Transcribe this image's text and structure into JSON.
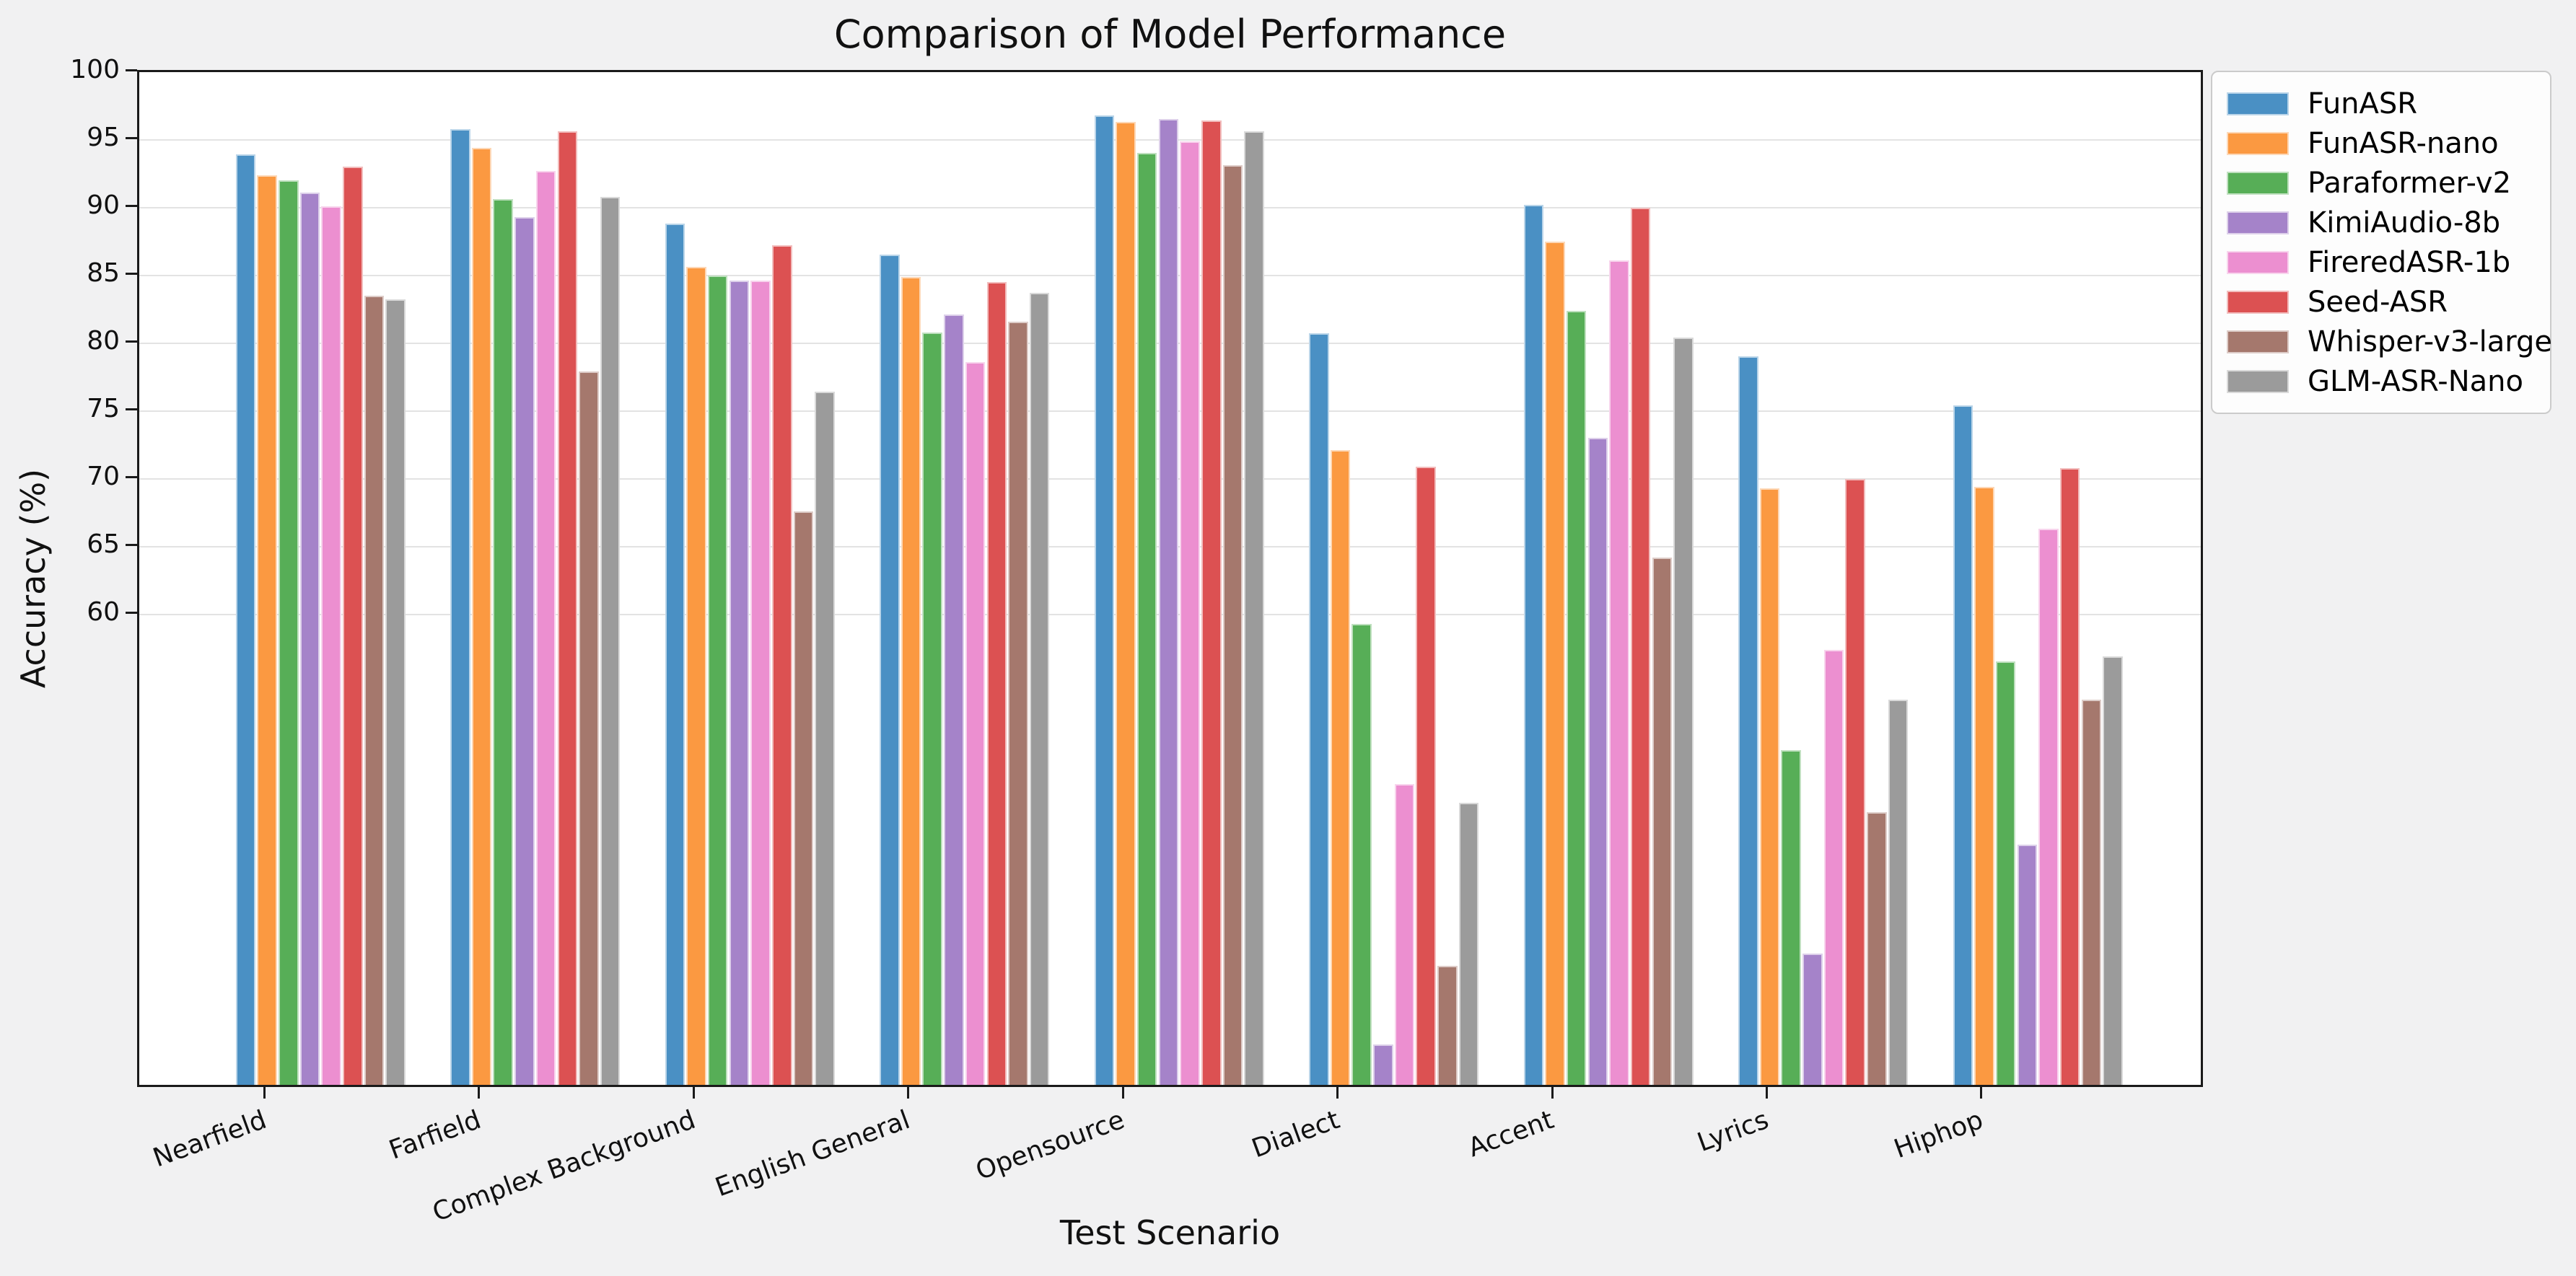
{
  "title": "Comparison of Model Performance",
  "xlabel": "Test Scenario",
  "ylabel": "Accuracy (%)",
  "chart_data": {
    "type": "bar",
    "title": "Comparison of Model Performance",
    "xlabel": "Test Scenario",
    "ylabel": "Accuracy (%)",
    "categories": [
      "Nearfield",
      "Farfield",
      "Complex Background",
      "English General",
      "Opensource",
      "Dialect",
      "Accent",
      "Lyrics",
      "Hiphop"
    ],
    "series": [
      {
        "name": "FunASR",
        "color": "#4A90C4",
        "values": [
          93.6,
          95.5,
          88.5,
          86.2,
          96.5,
          80.4,
          89.9,
          78.7,
          75.1
        ]
      },
      {
        "name": "FunASR-nano",
        "color": "#FB9941",
        "values": [
          92.1,
          94.1,
          85.3,
          84.6,
          96.0,
          71.8,
          87.2,
          69.0,
          69.1
        ]
      },
      {
        "name": "Paraformer-v2",
        "color": "#57AE57",
        "values": [
          91.7,
          90.3,
          84.7,
          80.5,
          93.7,
          59.0,
          82.1,
          49.7,
          56.2
        ]
      },
      {
        "name": "KimiAudio-8b",
        "color": "#A583C9",
        "values": [
          90.8,
          89.0,
          84.3,
          81.8,
          96.2,
          28.0,
          72.7,
          34.7,
          42.7
        ]
      },
      {
        "name": "FireredASR-1b",
        "color": "#EC8FD0",
        "values": [
          89.8,
          92.4,
          84.3,
          78.3,
          94.6,
          47.2,
          85.8,
          57.1,
          66.0
        ]
      },
      {
        "name": "Seed-ASR",
        "color": "#DC5152",
        "values": [
          92.7,
          95.3,
          86.9,
          84.2,
          96.1,
          70.6,
          89.7,
          69.7,
          70.5
        ]
      },
      {
        "name": "Whisper-v3-large",
        "color": "#A5786D",
        "values": [
          83.2,
          77.6,
          67.3,
          81.3,
          92.8,
          33.8,
          63.9,
          45.1,
          53.4
        ]
      },
      {
        "name": "GLM-ASR-Nano",
        "color": "#9B9B9B",
        "values": [
          82.9,
          90.5,
          76.1,
          83.4,
          95.3,
          45.8,
          80.1,
          53.4,
          56.6
        ]
      }
    ],
    "ylim": [
      25,
      100
    ],
    "yticks": [
      60,
      65,
      70,
      75,
      80,
      85,
      90,
      95,
      100
    ],
    "grid": "horizontal-only-at-yticks",
    "legend_position": "outside-upper-right",
    "x_tick_label_rotation_deg": 20,
    "figure_background": "#f1f1f2",
    "plot_background": "#ffffff",
    "gridline_color": "#e3e3e3",
    "spine_color": "#1a1a1a"
  }
}
